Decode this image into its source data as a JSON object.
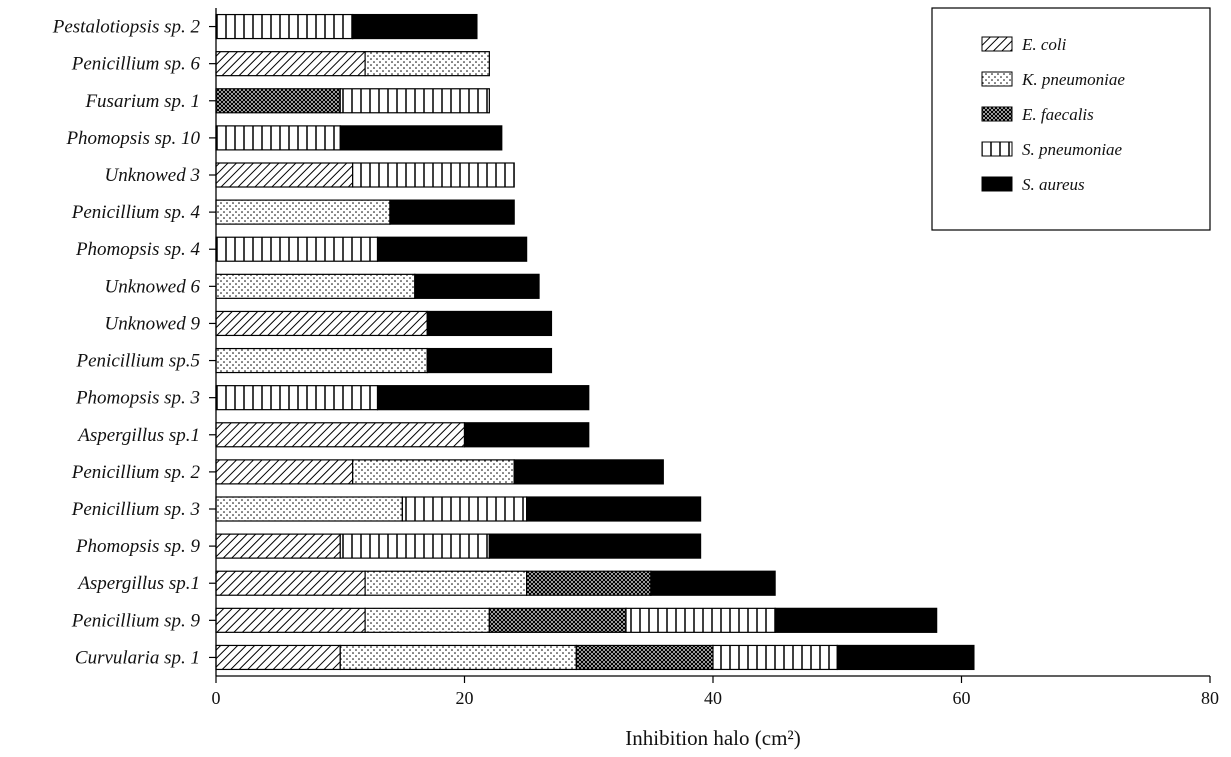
{
  "chart_data": {
    "type": "bar",
    "orientation": "horizontal",
    "stacked": true,
    "title": "",
    "xlabel": "Inhibition halo (cm²)",
    "ylabel": "",
    "xlim": [
      0,
      80
    ],
    "xticks": [
      "0",
      "20",
      "40",
      "60",
      "80"
    ],
    "grid": false,
    "legend_position": "top-right",
    "categories": [
      "Pestalotiopsis sp. 2",
      "Penicillium sp. 6",
      "Fusarium sp. 1",
      "Phomopsis sp. 10",
      "Unknowed 3",
      "Penicillium sp. 4",
      "Phomopsis sp. 4",
      "Unknowed 6",
      "Unknowed 9",
      "Penicillium sp.5",
      "Phomopsis sp. 3",
      "Aspergillus sp.1",
      "Penicillium sp. 2",
      "Penicillium sp. 3",
      "Phomopsis sp. 9",
      "Aspergillus sp.1",
      "Penicillium sp. 9",
      "Curvularia sp. 1"
    ],
    "series": [
      {
        "name": "E. coli",
        "pattern": "diagonal",
        "values": [
          0,
          12,
          0,
          0,
          11,
          0,
          0,
          0,
          17,
          0,
          0,
          20,
          11,
          0,
          10,
          12,
          12,
          10
        ]
      },
      {
        "name": "K. pneumoniae",
        "pattern": "dots",
        "values": [
          0,
          10,
          0,
          0,
          0,
          14,
          0,
          16,
          0,
          17,
          0,
          0,
          13,
          15,
          0,
          13,
          10,
          19
        ]
      },
      {
        "name": "E. faecalis",
        "pattern": "crosshatch",
        "values": [
          0,
          0,
          10,
          0,
          0,
          0,
          0,
          0,
          0,
          0,
          0,
          0,
          0,
          0,
          0,
          10,
          11,
          11
        ]
      },
      {
        "name": "S. pneumoniae",
        "pattern": "vertical",
        "values": [
          11,
          0,
          12,
          10,
          13,
          0,
          13,
          0,
          0,
          0,
          13,
          0,
          0,
          10,
          12,
          0,
          12,
          10
        ]
      },
      {
        "name": "S. aureus",
        "pattern": "solid",
        "values": [
          10,
          0,
          0,
          13,
          0,
          10,
          12,
          10,
          10,
          10,
          17,
          10,
          12,
          14,
          17,
          10,
          13,
          11
        ]
      }
    ]
  }
}
